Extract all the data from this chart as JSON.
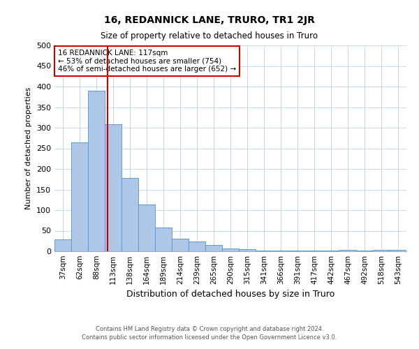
{
  "title": "16, REDANNICK LANE, TRURO, TR1 2JR",
  "subtitle": "Size of property relative to detached houses in Truro",
  "xlabel": "Distribution of detached houses by size in Truro",
  "ylabel": "Number of detached properties",
  "footnote1": "Contains HM Land Registry data © Crown copyright and database right 2024.",
  "footnote2": "Contains public sector information licensed under the Open Government Licence v3.0.",
  "categories": [
    "37sqm",
    "62sqm",
    "88sqm",
    "113sqm",
    "138sqm",
    "164sqm",
    "189sqm",
    "214sqm",
    "239sqm",
    "265sqm",
    "290sqm",
    "315sqm",
    "341sqm",
    "366sqm",
    "391sqm",
    "417sqm",
    "442sqm",
    "467sqm",
    "492sqm",
    "518sqm",
    "543sqm"
  ],
  "values": [
    28,
    265,
    390,
    308,
    178,
    113,
    57,
    31,
    23,
    15,
    7,
    5,
    1,
    1,
    1,
    1,
    1,
    4,
    1,
    4,
    4
  ],
  "bar_color": "#aec6e8",
  "bar_edge_color": "#5b9bd5",
  "property_line_color": "#cc0000",
  "annotation_text": "16 REDANNICK LANE: 117sqm\n← 53% of detached houses are smaller (754)\n46% of semi-detached houses are larger (652) →",
  "annotation_box_color": "#ffffff",
  "annotation_box_edge_color": "#cc0000",
  "ylim": [
    0,
    500
  ],
  "yticks": [
    0,
    50,
    100,
    150,
    200,
    250,
    300,
    350,
    400,
    450,
    500
  ],
  "background_color": "#ffffff",
  "grid_color": "#c8d8e8"
}
